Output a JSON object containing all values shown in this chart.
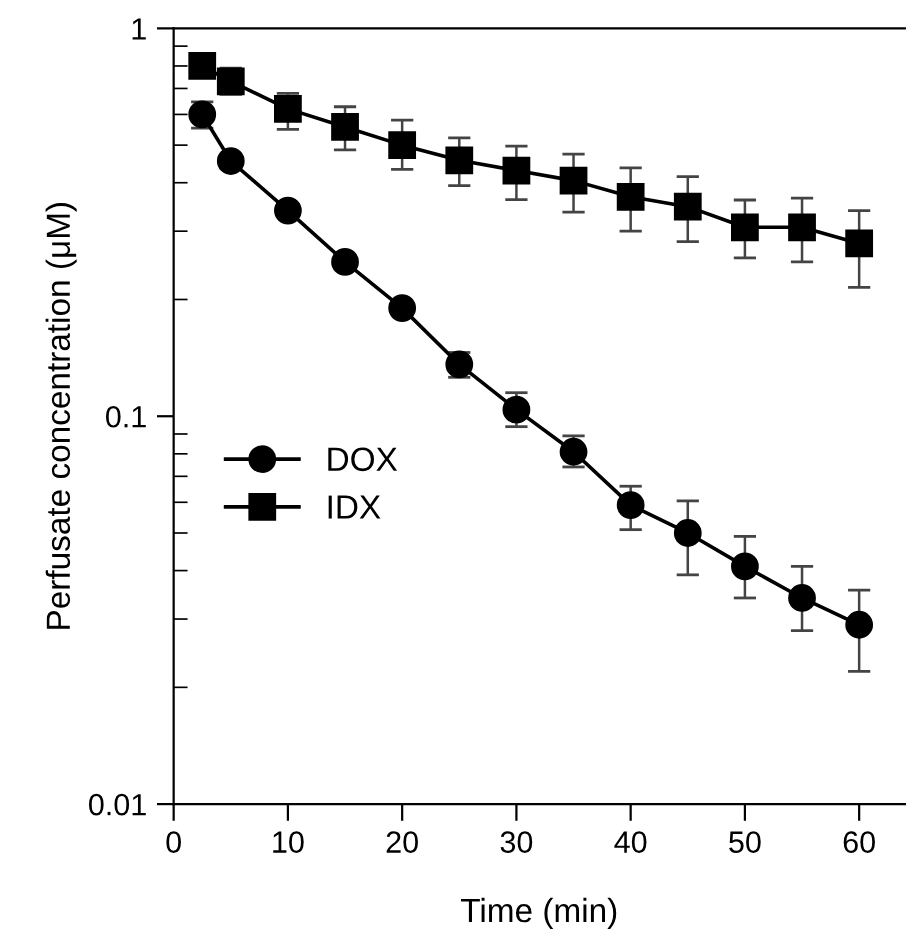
{
  "chart_data": {
    "type": "line",
    "xlabel": "Time (min)",
    "ylabel": "Perfusate concentration (μM)",
    "x": [
      2.5,
      5,
      10,
      15,
      20,
      25,
      30,
      35,
      40,
      45,
      50,
      55,
      60
    ],
    "xlim": [
      0,
      64
    ],
    "xticks": [
      0,
      10,
      20,
      30,
      40,
      50,
      60
    ],
    "ylim": [
      0.01,
      1
    ],
    "yticks": [
      0.01,
      0.1,
      1
    ],
    "log": true,
    "legend": "center left",
    "grid": false,
    "line_style": "solid",
    "series": [
      {
        "name": "DOX",
        "color": "#000000",
        "marker": "circle",
        "values": [
          0.6,
          0.455,
          0.339,
          0.25,
          0.19,
          0.136,
          0.104,
          0.081,
          0.059,
          0.05,
          0.041,
          0.034,
          0.029
        ],
        "errors": [
          [
            0.553,
            0.646
          ],
          null,
          null,
          null,
          null,
          [
            0.126,
            0.146
          ],
          [
            0.094,
            0.115
          ],
          [
            0.074,
            0.089
          ],
          [
            0.051,
            0.066
          ],
          [
            0.039,
            0.0605
          ],
          [
            0.034,
            0.049
          ],
          [
            0.028,
            0.041
          ],
          [
            0.022,
            0.0356
          ]
        ]
      },
      {
        "name": "IDX",
        "color": "#000000",
        "marker": "square",
        "values": [
          0.8,
          0.73,
          0.62,
          0.557,
          0.5,
          0.457,
          0.43,
          0.405,
          0.368,
          0.347,
          0.307,
          0.307,
          0.279
        ],
        "errors": [
          null,
          [
            0.676,
            0.79
          ],
          [
            0.549,
            0.68
          ],
          [
            0.486,
            0.628
          ],
          [
            0.433,
            0.58
          ],
          [
            0.393,
            0.522
          ],
          [
            0.362,
            0.497
          ],
          [
            0.336,
            0.474
          ],
          [
            0.3,
            0.437
          ],
          [
            0.282,
            0.415
          ],
          [
            0.256,
            0.361
          ],
          [
            0.25,
            0.365
          ],
          [
            0.215,
            0.339
          ]
        ]
      }
    ]
  }
}
